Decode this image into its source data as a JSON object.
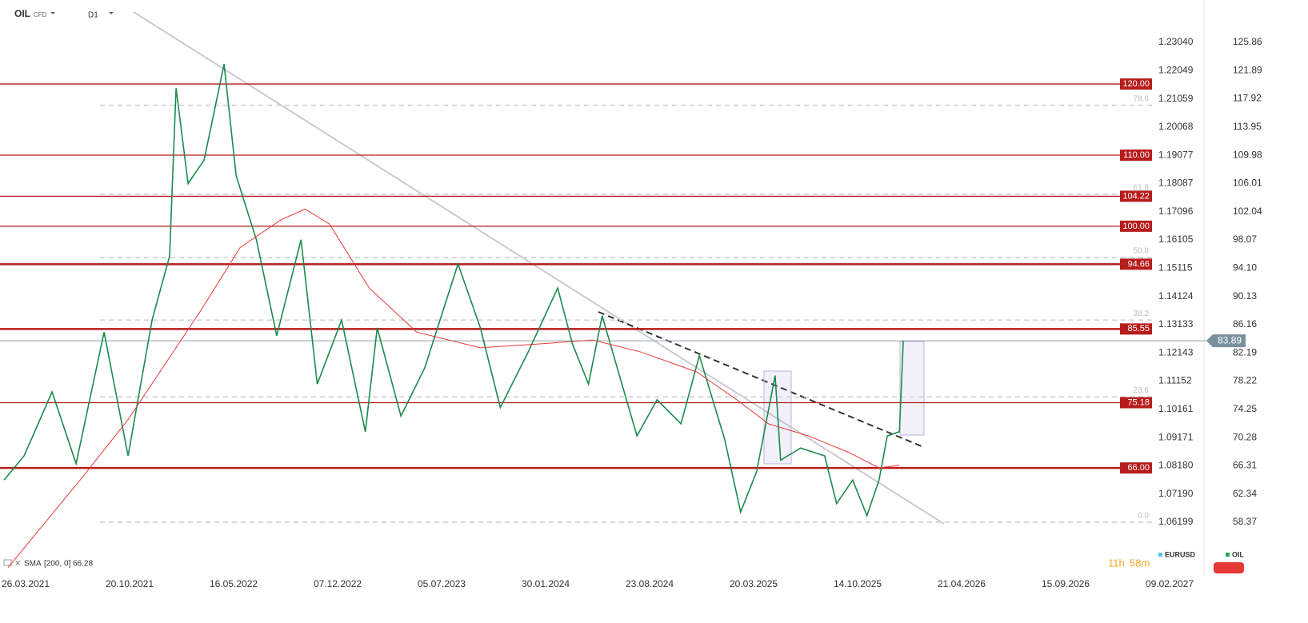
{
  "header": {
    "symbol": "OIL",
    "instrument_type": "CFD",
    "interval": "D1"
  },
  "chart_data": {
    "type": "line",
    "ylim": [
      50.83,
      131.82
    ],
    "yticks": [
      125.86,
      121.89,
      117.92,
      113.95,
      109.98,
      106.01,
      102.04,
      98.07,
      {
        "value": 94.1,
        "label": "94.10"
      },
      90.13,
      86.16,
      82.19,
      78.22,
      74.25,
      70.28,
      66.31,
      62.34,
      58.37
    ],
    "y2lim": [
      1.04318,
      1.24528
    ],
    "y2ticks": [
      {
        "value": 1.2304,
        "label": "1.23040"
      },
      1.22049,
      1.21059,
      1.20068,
      1.19077,
      1.18087,
      1.17096,
      1.16105,
      1.15115,
      1.14124,
      1.13133,
      1.12143,
      1.11152,
      1.10161,
      1.09171,
      {
        "value": 1.0818,
        "label": "1.08180"
      },
      {
        "value": 1.0719,
        "label": "1.07190"
      },
      1.06199
    ],
    "xticks": [
      "26.03.2021",
      "20.10.2021",
      "16.05.2022",
      "07.12.2022",
      "05.07.2023",
      "30.01.2024",
      "23.08.2024",
      "20.03.2025",
      "14.10.2025",
      "21.04.2026",
      "15.09.2026",
      "09.02.2027"
    ],
    "series": [
      {
        "name": "OIL",
        "color": "#1b8a4c",
        "x": [
          "11.02.2021",
          "23.03.2021",
          "18.05.2021",
          "05.07.2021",
          "30.08.2021",
          "17.10.2021",
          "04.12.2021",
          "08.01.2022",
          "21.01.2022",
          "14.02.2022",
          "18.03.2022",
          "27.04.2022",
          "21.05.2022",
          "30.06.2022",
          "09.08.2022",
          "26.09.2022",
          "28.10.2022",
          "15.12.2022",
          "01.02.2023",
          "25.02.2023",
          "14.04.2023",
          "01.06.2023",
          "07.08.2023",
          "21.09.2023",
          "31.10.2023",
          "26.12.2023",
          "23.02.2024",
          "23.03.2024",
          "24.04.2024",
          "21.05.2024",
          "29.07.2024",
          "07.09.2024",
          "25.10.2024",
          "01.12.2024",
          "21.01.2025",
          "22.02.2025",
          "26.03.2025",
          "02.05.2025",
          "13.05.2025",
          "22.06.2025",
          "09.08.2025",
          "02.09.2025",
          "04.10.2025",
          "31.10.2025",
          "22.11.2025",
          "07.12.2025",
          "29.12.2025",
          "05.01.2026"
        ],
        "values": [
          64.3,
          67.7,
          76.7,
          66.6,
          85.1,
          67.7,
          86.8,
          95.8,
          119.4,
          106.0,
          109.3,
          122.8,
          107.1,
          98.1,
          84.6,
          98.1,
          77.8,
          86.8,
          71.1,
          85.7,
          73.3,
          80.1,
          94.7,
          85.7,
          74.5,
          82.3,
          91.3,
          83.5,
          77.8,
          87.4,
          70.5,
          75.6,
          72.2,
          81.8,
          70.0,
          59.8,
          65.5,
          79.0,
          67.1,
          68.8,
          67.7,
          61.0,
          64.3,
          59.3,
          64.3,
          70.5,
          71.1,
          83.89
        ]
      },
      {
        "name": "SMA",
        "color": "#e53935",
        "x": [
          "19.02.2021",
          "13.07.2021",
          "17.10.2021",
          "10.03.2022",
          "29.05.2022",
          "17.08.2022",
          "04.10.2022",
          "21.11.2022",
          "09.02.2023",
          "16.05.2023",
          "21.09.2023",
          "27.01.2024",
          "02.05.2024",
          "06.08.2024",
          "26.11.2024",
          "14.02.2025",
          "19.04.2025",
          "08.07.2025",
          "26.09.2025",
          "22.11.2025",
          "29.12.2025"
        ],
        "values": [
          52.0,
          64.3,
          72.8,
          88.0,
          97.0,
          100.9,
          102.4,
          100.3,
          91.3,
          85.1,
          82.9,
          83.5,
          84.0,
          82.3,
          79.5,
          75.6,
          72.2,
          70.5,
          68.2,
          66.0,
          66.4
        ]
      }
    ],
    "levels": [
      {
        "value": 120,
        "label": "120.00"
      },
      {
        "value": 110,
        "label": "110.00"
      },
      {
        "value": 104.22,
        "label": "104.22"
      },
      {
        "value": 100,
        "label": "100.00"
      },
      {
        "value": 94.66,
        "label": "94.66"
      },
      {
        "value": 85.55,
        "label": "85.55"
      },
      {
        "value": 75.18,
        "label": "75.18"
      },
      {
        "value": 66,
        "label": "66.00"
      }
    ],
    "level_color": "#b71c1c",
    "fibonacci": [
      {
        "label": "78.6",
        "price": 117.0
      },
      {
        "label": "61.8",
        "price": 104.5
      },
      {
        "label": "50.0",
        "price": 95.6
      },
      {
        "label": "38.2",
        "price": 86.8
      },
      {
        "label": "23.6",
        "price": 76.0
      },
      {
        "label": "0.0",
        "price": 58.37
      }
    ],
    "current_price": {
      "value": 83.89,
      "label": "83.89"
    },
    "indicator": {
      "name": "SMA",
      "params": "[200, 0]",
      "last": 66.28
    },
    "legend": [
      {
        "name": "EURUSD",
        "color": "#4fc3f7"
      },
      {
        "name": "OIL",
        "color": "#26a65b"
      }
    ],
    "timer": {
      "hours": "11h",
      "minutes": "58m"
    }
  }
}
